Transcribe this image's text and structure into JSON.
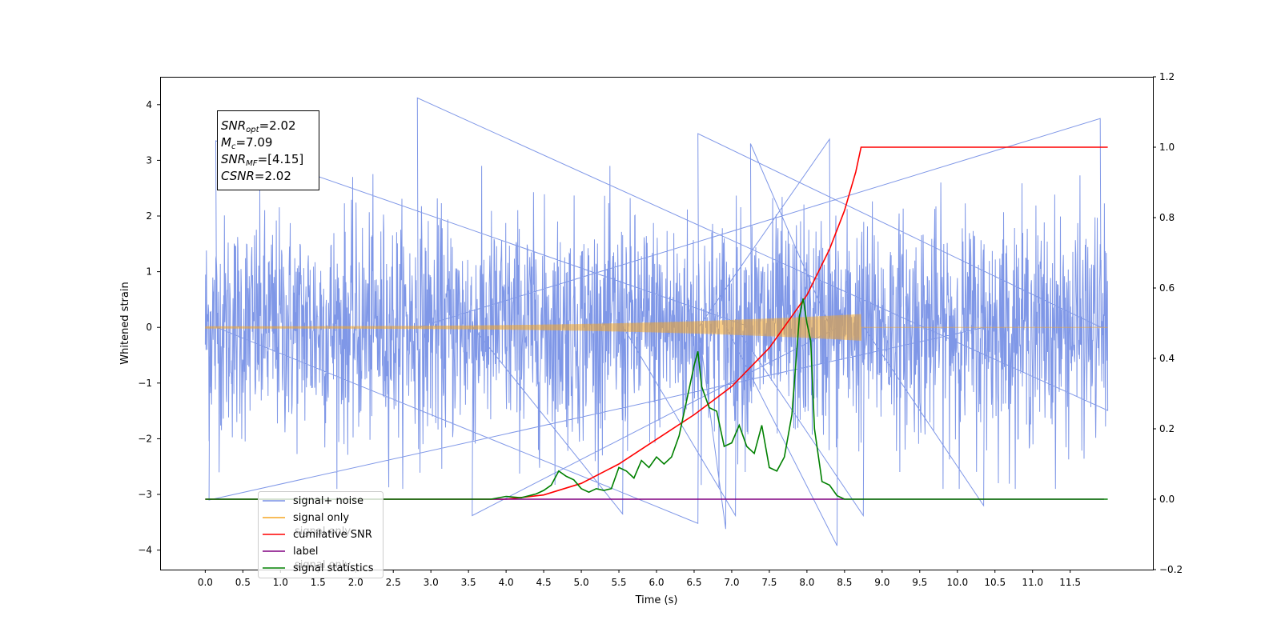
{
  "chart_data": {
    "type": "line",
    "xlabel": "Time (s)",
    "ylabel": "Whitened strain",
    "xlim": [
      -0.6,
      12.6
    ],
    "ylim": [
      -4.35,
      4.5
    ],
    "ylim_right": [
      -0.2,
      1.2
    ],
    "x_ticks": [
      0.0,
      0.5,
      1.0,
      1.5,
      2.0,
      2.5,
      3.0,
      3.5,
      4.0,
      4.5,
      5.0,
      5.5,
      6.0,
      6.5,
      7.0,
      7.5,
      8.0,
      8.5,
      9.0,
      9.5,
      10.0,
      10.5,
      11.0,
      11.5
    ],
    "x_tick_labels": [
      "0.0",
      "0.5",
      "1.0",
      "1.5",
      "2.0",
      "2.5",
      "3.0",
      "3.5",
      "4.0",
      "4.5",
      "5.0",
      "5.5",
      "6.0",
      "6.5",
      "7.0",
      "7.5",
      "8.0",
      "8.5",
      "9.0",
      "9.5",
      "10.0",
      "10.5",
      "11.0",
      "11.5"
    ],
    "y_ticks_left": [
      4,
      3,
      2,
      1,
      0,
      -1,
      -2,
      -3,
      -4
    ],
    "y_tick_labels_left": [
      "4",
      "3",
      "2",
      "1",
      "0",
      "−1",
      "−2",
      "−3",
      "−4"
    ],
    "y_ticks_right": [
      1.2,
      1.0,
      0.8,
      0.6,
      0.4,
      0.2,
      0.0,
      -0.2
    ],
    "y_tick_labels_right": [
      "1.2",
      "1.0",
      "0.8",
      "0.6",
      "0.4",
      "0.2",
      "0.0",
      "−0.2"
    ],
    "grid": false,
    "legend_position": "lower-left",
    "noise": {
      "x_range": [
        0.0,
        12.0
      ],
      "base_amplitude": 1.6,
      "spikes": [
        {
          "x": 2.82,
          "y": 4.12
        },
        {
          "x": 11.9,
          "y": 3.75
        },
        {
          "x": 6.55,
          "y": 3.48
        },
        {
          "x": 8.3,
          "y": 3.38
        },
        {
          "x": 7.25,
          "y": 3.3
        },
        {
          "x": 0.14,
          "y": 3.35
        },
        {
          "x": 6.55,
          "y": -3.52
        },
        {
          "x": 6.92,
          "y": -3.62
        },
        {
          "x": 8.4,
          "y": -3.92
        },
        {
          "x": 3.55,
          "y": -3.38
        },
        {
          "x": 5.55,
          "y": -3.35
        },
        {
          "x": 7.05,
          "y": -3.38
        },
        {
          "x": 8.75,
          "y": -3.38
        },
        {
          "x": 10.35,
          "y": -3.2
        },
        {
          "x": 0.05,
          "y": -3.1
        }
      ]
    },
    "series": [
      {
        "name": "signal+ noise",
        "axis": "left",
        "color": "#7891e6",
        "kind": "noise"
      },
      {
        "name": "signal only",
        "axis": "left",
        "color": "#f5a623",
        "kind": "chirp",
        "t_merge": 8.72,
        "amplitude_start": 0.02,
        "amplitude_end": 0.24
      },
      {
        "name": "cumilative SNR",
        "axis": "right",
        "color": "#ff0000",
        "x": [
          0.0,
          4.0,
          4.5,
          5.0,
          5.5,
          6.0,
          6.5,
          7.0,
          7.5,
          8.0,
          8.3,
          8.5,
          8.65,
          8.72,
          12.0
        ],
        "y": [
          0.0,
          0.0,
          0.012,
          0.045,
          0.1,
          0.17,
          0.24,
          0.32,
          0.43,
          0.58,
          0.71,
          0.82,
          0.93,
          1.0,
          1.0
        ]
      },
      {
        "name": "label",
        "axis": "right",
        "color": "#800080",
        "x": [
          0.0,
          11.95
        ],
        "y": [
          0.0,
          0.0
        ]
      },
      {
        "name": "signal statistics",
        "axis": "right",
        "color": "#008000",
        "x": [
          0.0,
          3.8,
          4.0,
          4.2,
          4.4,
          4.5,
          4.6,
          4.7,
          4.8,
          4.9,
          5.0,
          5.1,
          5.2,
          5.3,
          5.4,
          5.5,
          5.6,
          5.7,
          5.8,
          5.9,
          6.0,
          6.1,
          6.2,
          6.3,
          6.4,
          6.5,
          6.55,
          6.6,
          6.7,
          6.8,
          6.9,
          7.0,
          7.1,
          7.2,
          7.3,
          7.4,
          7.5,
          7.6,
          7.7,
          7.8,
          7.9,
          7.95,
          8.0,
          8.05,
          8.1,
          8.2,
          8.3,
          8.4,
          8.5,
          9.0,
          12.0
        ],
        "y": [
          0.0,
          0.0,
          0.008,
          0.004,
          0.015,
          0.025,
          0.04,
          0.08,
          0.065,
          0.055,
          0.03,
          0.02,
          0.03,
          0.025,
          0.03,
          0.09,
          0.08,
          0.06,
          0.11,
          0.09,
          0.12,
          0.1,
          0.12,
          0.18,
          0.28,
          0.38,
          0.42,
          0.32,
          0.26,
          0.25,
          0.15,
          0.16,
          0.21,
          0.15,
          0.13,
          0.21,
          0.09,
          0.08,
          0.12,
          0.24,
          0.52,
          0.57,
          0.5,
          0.45,
          0.2,
          0.05,
          0.04,
          0.01,
          0.0,
          0.0,
          0.0
        ]
      }
    ],
    "annotation_box": [
      {
        "label": "SNR",
        "sub": "opt",
        "value": "=2.02"
      },
      {
        "label": "M",
        "sub": "c",
        "value": "=7.09"
      },
      {
        "label": "SNR",
        "sub": "MF",
        "value": "=[4.15]"
      },
      {
        "label": "CSNR",
        "sub": "",
        "value": "=2.02"
      }
    ],
    "legend": [
      {
        "label": "signal+ noise",
        "color": "#7891e6"
      },
      {
        "label": "signal only",
        "color": "#f5a623"
      },
      {
        "label": "cumilative SNR",
        "color": "#ff0000"
      },
      {
        "label": "label",
        "color": "#800080"
      },
      {
        "label": "signal statistics",
        "color": "#008000"
      }
    ],
    "legend_overlapped_text": [
      "signal only",
      "signal only"
    ]
  }
}
